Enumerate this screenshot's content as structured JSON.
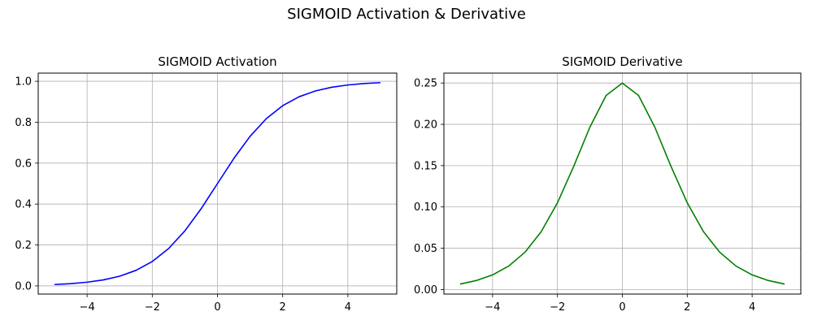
{
  "figure": {
    "title": "SIGMOID Activation & Derivative"
  },
  "chart_data": [
    {
      "type": "line",
      "title": "SIGMOID Activation",
      "xlabel": "",
      "ylabel": "",
      "xlim": [
        -5.5,
        5.5
      ],
      "ylim": [
        -0.04,
        1.04
      ],
      "xticks": [
        -4,
        -2,
        0,
        2,
        4
      ],
      "xtick_labels": [
        "−4",
        "−2",
        "0",
        "2",
        "4"
      ],
      "yticks": [
        0.0,
        0.2,
        0.4,
        0.6,
        0.8,
        1.0
      ],
      "ytick_labels": [
        "0.0",
        "0.2",
        "0.4",
        "0.6",
        "0.8",
        "1.0"
      ],
      "grid": true,
      "series": [
        {
          "color": "#0000ff",
          "x": [
            -5,
            -4.5,
            -4,
            -3.5,
            -3,
            -2.5,
            -2,
            -1.5,
            -1,
            -0.5,
            0,
            0.5,
            1,
            1.5,
            2,
            2.5,
            3,
            3.5,
            4,
            4.5,
            5
          ],
          "y": [
            0.0067,
            0.011,
            0.018,
            0.0293,
            0.0474,
            0.0759,
            0.1192,
            0.1824,
            0.2689,
            0.3775,
            0.5,
            0.6225,
            0.7311,
            0.8176,
            0.8808,
            0.9241,
            0.9526,
            0.9707,
            0.982,
            0.989,
            0.9933
          ]
        }
      ]
    },
    {
      "type": "line",
      "title": "SIGMOID Derivative",
      "xlabel": "",
      "ylabel": "",
      "xlim": [
        -5.5,
        5.5
      ],
      "ylim": [
        -0.0055,
        0.262
      ],
      "xticks": [
        -4,
        -2,
        0,
        2,
        4
      ],
      "xtick_labels": [
        "−4",
        "−2",
        "0",
        "2",
        "4"
      ],
      "yticks": [
        0.0,
        0.05,
        0.1,
        0.15,
        0.2,
        0.25
      ],
      "ytick_labels": [
        "0.00",
        "0.05",
        "0.10",
        "0.15",
        "0.20",
        "0.25"
      ],
      "grid": true,
      "series": [
        {
          "color": "#008000",
          "x": [
            -5,
            -4.5,
            -4,
            -3.5,
            -3,
            -2.5,
            -2,
            -1.5,
            -1,
            -0.5,
            0,
            0.5,
            1,
            1.5,
            2,
            2.5,
            3,
            3.5,
            4,
            4.5,
            5
          ],
          "y": [
            0.0066,
            0.0109,
            0.0177,
            0.0285,
            0.0452,
            0.0701,
            0.105,
            0.1491,
            0.1966,
            0.235,
            0.25,
            0.235,
            0.1966,
            0.1491,
            0.105,
            0.0701,
            0.0452,
            0.0285,
            0.0177,
            0.0109,
            0.0066
          ]
        }
      ]
    }
  ]
}
